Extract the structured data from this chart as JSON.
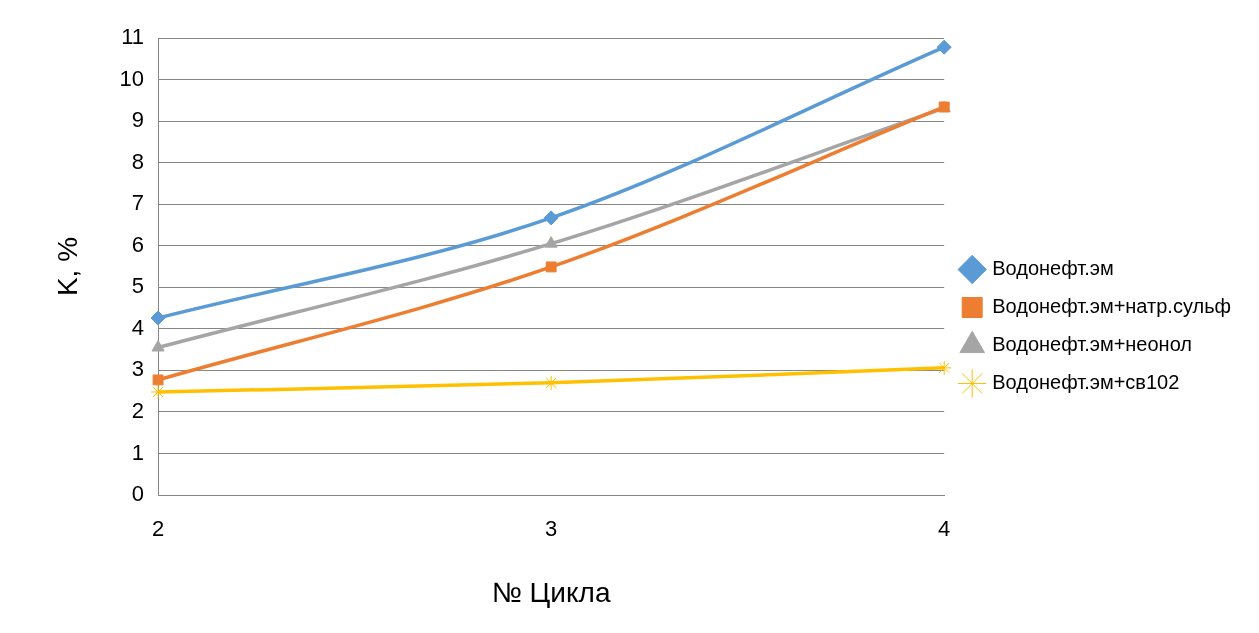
{
  "chart_data": {
    "type": "line",
    "xlabel": "№ Цикла",
    "ylabel": "K, %",
    "categories": [
      "2",
      "3",
      "4"
    ],
    "ylim": [
      0,
      11
    ],
    "yticks": [
      0,
      1,
      2,
      3,
      4,
      5,
      6,
      7,
      8,
      9,
      10,
      11
    ],
    "grid": "y",
    "legend": "right",
    "series": [
      {
        "name": "Водонефт.эм",
        "color": "#5b9bd5",
        "marker": "diamond",
        "values": [
          4.26,
          6.67,
          10.78
        ]
      },
      {
        "name": "Водонефт.эм+натр.сульф",
        "color": "#ed7d31",
        "marker": "square",
        "values": [
          2.77,
          5.49,
          9.34
        ]
      },
      {
        "name": "Водонефт.эм+неонол",
        "color": "#a5a5a5",
        "marker": "triangle",
        "values": [
          3.55,
          6.05,
          9.31
        ]
      },
      {
        "name": "Водонефт.эм+св102",
        "color": "#ffc000",
        "marker": "cross",
        "values": [
          2.48,
          2.7,
          3.06
        ]
      }
    ]
  }
}
